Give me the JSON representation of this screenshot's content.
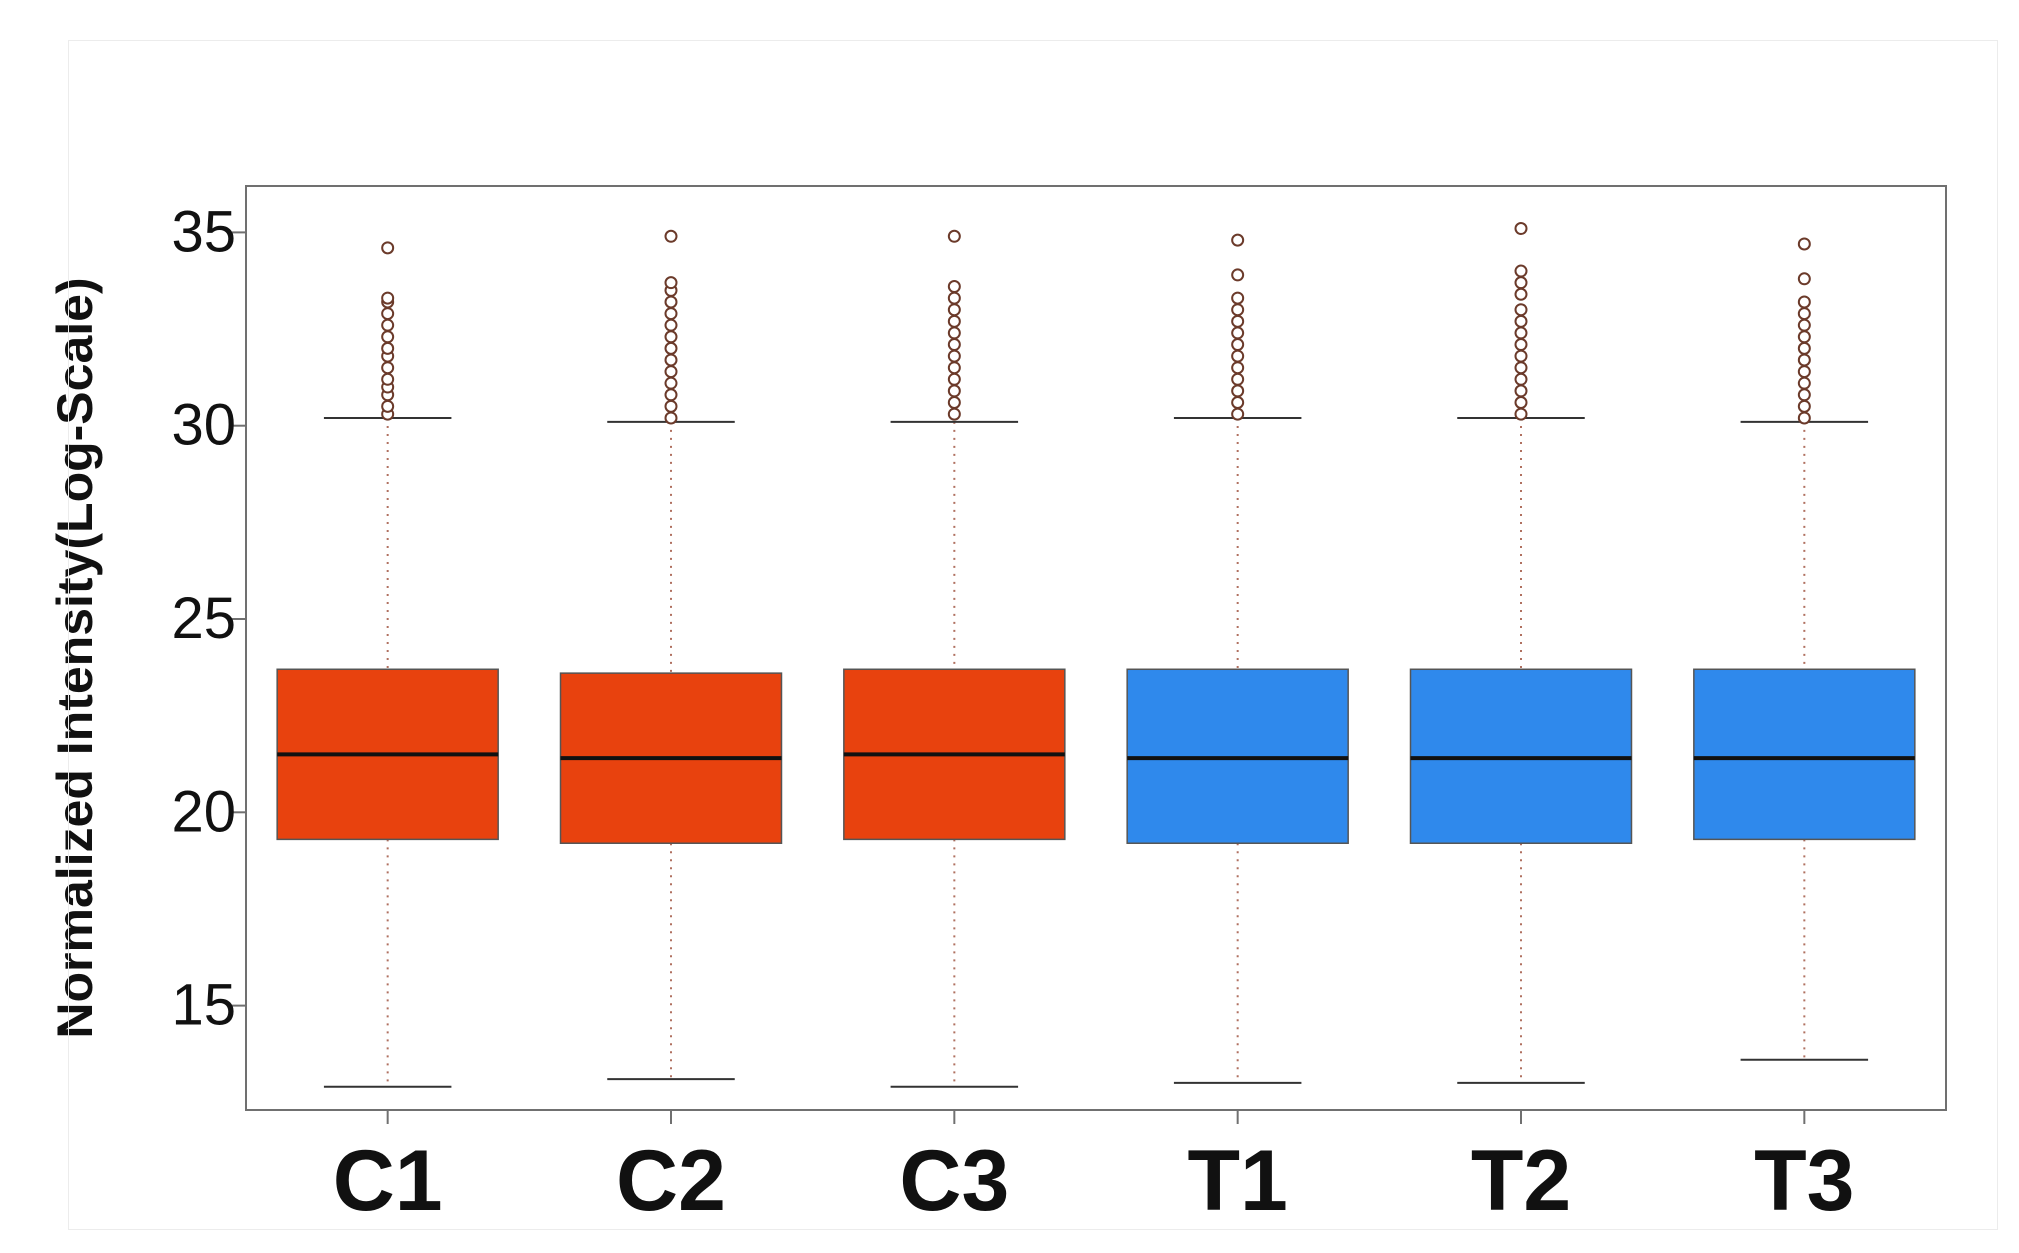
{
  "chart_data": {
    "type": "box",
    "ylabel": "Normalized Intensity(Log-Scale)",
    "xlabel": "",
    "ylim": [
      12.3,
      36.2
    ],
    "yticks": [
      15,
      20,
      25,
      30,
      35
    ],
    "categories": [
      "C1",
      "C2",
      "C3",
      "T1",
      "T2",
      "T3"
    ],
    "series": [
      {
        "group": "C",
        "color": "#e8420e",
        "boxes": [
          {
            "label": "C1",
            "min": 12.9,
            "q1": 19.3,
            "median": 21.5,
            "q3": 23.7,
            "max": 30.2,
            "outliers": [
              30.3,
              30.5,
              30.8,
              31.0,
              31.2,
              31.5,
              31.8,
              32.0,
              32.3,
              32.6,
              32.9,
              33.2,
              33.3,
              34.6
            ]
          },
          {
            "label": "C2",
            "min": 13.1,
            "q1": 19.2,
            "median": 21.4,
            "q3": 23.6,
            "max": 30.1,
            "outliers": [
              30.2,
              30.5,
              30.8,
              31.1,
              31.4,
              31.7,
              32.0,
              32.3,
              32.6,
              32.9,
              33.2,
              33.5,
              33.7,
              34.9
            ]
          },
          {
            "label": "C3",
            "min": 12.9,
            "q1": 19.3,
            "median": 21.5,
            "q3": 23.7,
            "max": 30.1,
            "outliers": [
              30.3,
              30.6,
              30.9,
              31.2,
              31.5,
              31.8,
              32.1,
              32.4,
              32.7,
              33.0,
              33.3,
              33.6,
              34.9
            ]
          }
        ]
      },
      {
        "group": "T",
        "color": "#2f89ec",
        "boxes": [
          {
            "label": "T1",
            "min": 13.0,
            "q1": 19.2,
            "median": 21.4,
            "q3": 23.7,
            "max": 30.2,
            "outliers": [
              30.3,
              30.6,
              30.9,
              31.2,
              31.5,
              31.8,
              32.1,
              32.4,
              32.7,
              33.0,
              33.3,
              33.9,
              34.8
            ]
          },
          {
            "label": "T2",
            "min": 13.0,
            "q1": 19.2,
            "median": 21.4,
            "q3": 23.7,
            "max": 30.2,
            "outliers": [
              30.3,
              30.6,
              30.9,
              31.2,
              31.5,
              31.8,
              32.1,
              32.4,
              32.7,
              33.0,
              33.4,
              33.7,
              34.0,
              35.1
            ]
          },
          {
            "label": "T3",
            "min": 13.6,
            "q1": 19.3,
            "median": 21.4,
            "q3": 23.7,
            "max": 30.1,
            "outliers": [
              30.2,
              30.5,
              30.8,
              31.1,
              31.4,
              31.7,
              32.0,
              32.3,
              32.6,
              32.9,
              33.2,
              33.8,
              34.7
            ]
          }
        ]
      }
    ]
  }
}
